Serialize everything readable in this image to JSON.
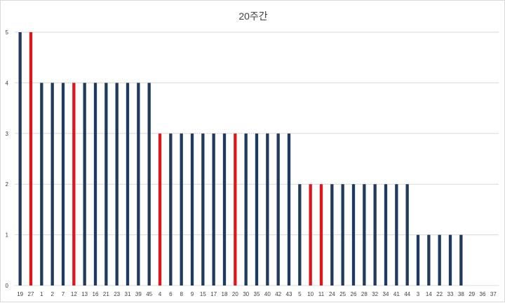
{
  "chart_data": {
    "type": "bar",
    "title": "20주간",
    "xlabel": "",
    "ylabel": "",
    "ylim": [
      0,
      5
    ],
    "yticks": [
      0,
      1,
      2,
      3,
      4,
      5
    ],
    "grid": true,
    "legend": "none",
    "categories": [
      "19",
      "27",
      "1",
      "2",
      "7",
      "12",
      "13",
      "16",
      "21",
      "23",
      "31",
      "39",
      "45",
      "4",
      "6",
      "8",
      "9",
      "15",
      "17",
      "18",
      "20",
      "30",
      "35",
      "40",
      "42",
      "43",
      "5",
      "10",
      "11",
      "24",
      "25",
      "26",
      "28",
      "32",
      "34",
      "41",
      "44",
      "3",
      "14",
      "22",
      "33",
      "38",
      "29",
      "36",
      "37"
    ],
    "values": [
      5,
      5,
      4,
      4,
      4,
      4,
      4,
      4,
      4,
      4,
      4,
      4,
      4,
      3,
      3,
      3,
      3,
      3,
      3,
      3,
      3,
      3,
      3,
      3,
      3,
      3,
      2,
      2,
      2,
      2,
      2,
      2,
      2,
      2,
      2,
      2,
      2,
      1,
      1,
      1,
      1,
      1,
      0,
      0,
      0
    ],
    "highlighted": [
      "27",
      "12",
      "4",
      "20",
      "10",
      "11"
    ],
    "colors": {
      "default_bar": "#1f3a5f",
      "highlight_bar": "#e0151c",
      "grid": "#d9d9d9",
      "text": "#404040"
    }
  }
}
